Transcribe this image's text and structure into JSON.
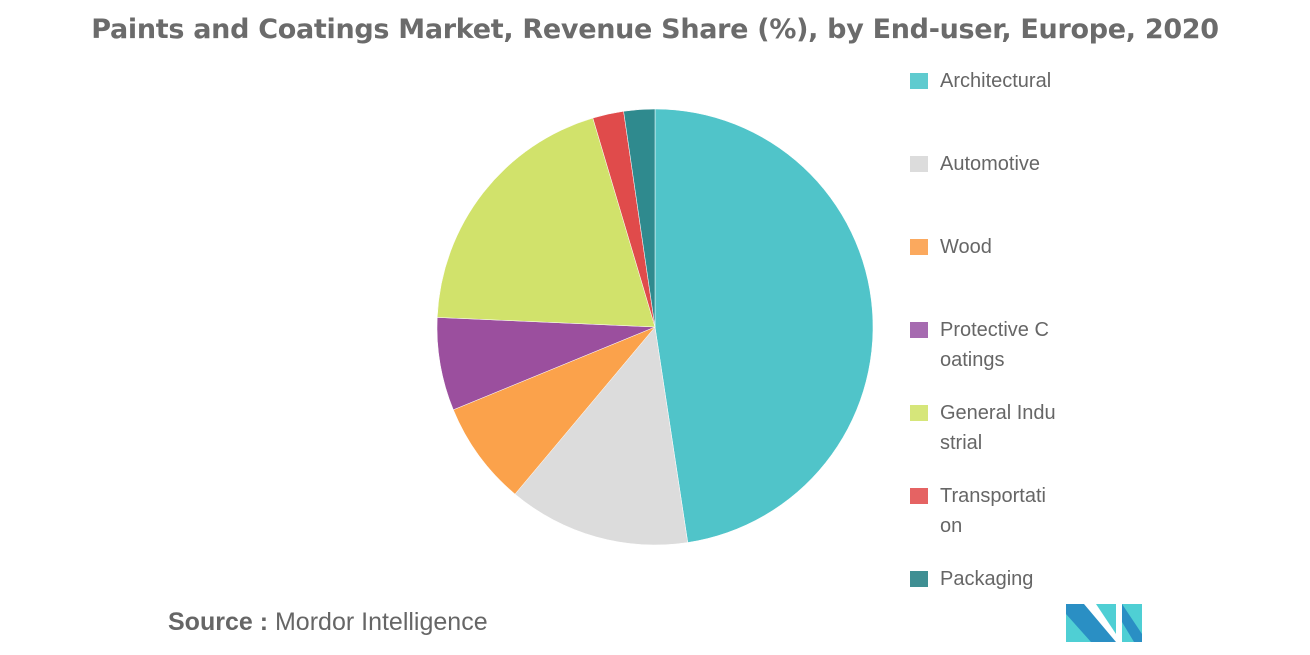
{
  "chart_data": {
    "type": "pie",
    "title": "Paints and Coatings Market, Revenue Share (%), by End-user, Europe, 2020",
    "categories": [
      "Architectural",
      "Automotive",
      "Wood",
      "Protective Coatings",
      "General Industrial",
      "Transportation",
      "Packaging"
    ],
    "values": [
      47.6,
      13.5,
      7.7,
      6.9,
      19.7,
      2.3,
      2.3
    ],
    "colors": [
      "#50c4c9",
      "#dcdcdc",
      "#fba24b",
      "#9b4f9e",
      "#d1e26b",
      "#e04b4b",
      "#2f8a8e"
    ],
    "legend_colors": [
      "#5fcbcf",
      "#dcdcdc",
      "#fba95e",
      "#a66bb0",
      "#d6e67a",
      "#e56363",
      "#3f8f93"
    ],
    "start_angle": "12 o'clock",
    "direction": "clockwise",
    "legend_placement": "right"
  },
  "source": {
    "label": "Source :",
    "value": "Mordor Intelligence"
  },
  "logo": {
    "text": "MI",
    "icon": "mordor-intelligence-logo"
  }
}
